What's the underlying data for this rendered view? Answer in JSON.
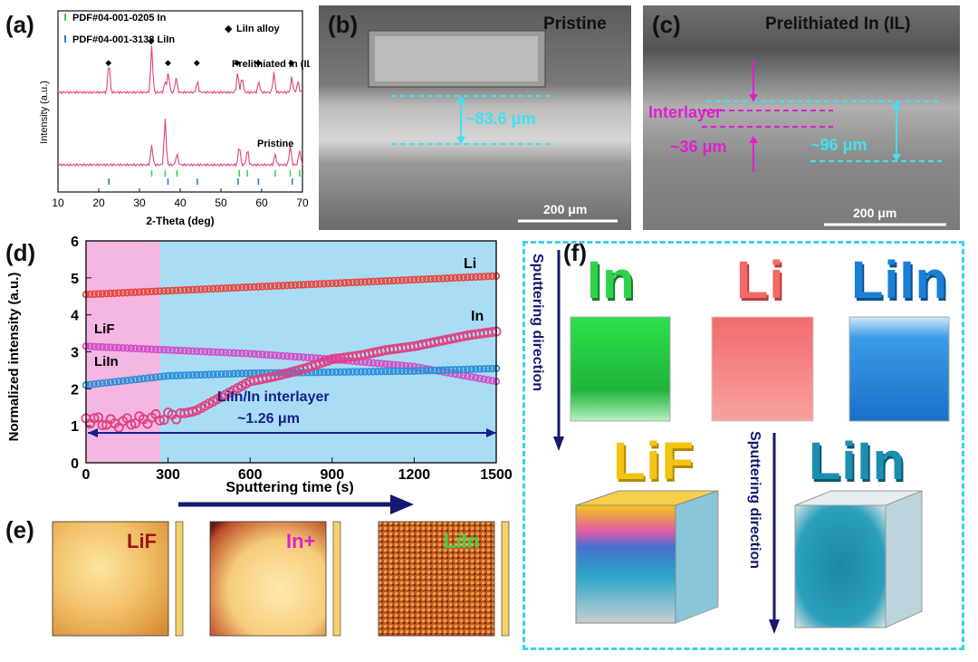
{
  "panel_a": {
    "label": "(a)",
    "legend": {
      "in_pdf": "PDF#04-001-0205 In",
      "liin_pdf": "PDF#04-001-3138 LiIn",
      "alloy": "LiIn alloy"
    },
    "curve_labels": {
      "top": "Prelithiated In (IL)",
      "bottom": "Pristine"
    },
    "chart_data": {
      "type": "line",
      "title": "",
      "xlabel": "2-Theta (deg)",
      "ylabel": "Intensity (a.u.)",
      "xlim": [
        10,
        70
      ],
      "x_ticks": [
        "10",
        "20",
        "30",
        "40",
        "50",
        "60",
        "70"
      ],
      "series": [
        {
          "name": "Prelithiated In (IL)",
          "peaks_2theta": [
            22.5,
            33.0,
            36.3,
            37.1,
            39.0,
            44.2,
            54.1,
            55.2,
            59.3,
            63.0,
            67.4,
            68.9
          ]
        },
        {
          "name": "Pristine",
          "peaks_2theta": [
            33.0,
            36.3,
            39.2,
            54.5,
            56.5,
            63.3,
            67.0,
            69.3
          ]
        }
      ],
      "reference_In_positions": [
        33.0,
        36.3,
        39.2,
        54.5,
        56.5,
        63.3,
        67.0,
        69.3
      ],
      "reference_LiIn_positions": [
        22.5,
        37.0,
        44.2,
        54.2,
        59.2,
        67.5
      ]
    }
  },
  "panel_b": {
    "label": "(b)",
    "title": "Pristine",
    "thickness": "~83.6 μm",
    "scale": "200 μm"
  },
  "panel_c": {
    "label": "(c)",
    "title": "Prelithiated In (IL)",
    "interlayer": "Interlayer",
    "interlayer_thickness": "~36 μm",
    "thickness": "~96 μm",
    "scale": "200 μm"
  },
  "panel_d": {
    "label": "(d)",
    "annotation": "LiIn/In interlayer",
    "annotation_value": "~1.26 μm",
    "series_labels": {
      "Li": "Li",
      "In": "In",
      "LiF": "LiF",
      "LiIn": "LiIn"
    },
    "chart_data": {
      "type": "scatter",
      "xlabel": "Sputtering time (s)",
      "ylabel": "Normalized intensity (a.u.)",
      "xlim": [
        0,
        1500
      ],
      "ylim": [
        0,
        6
      ],
      "x_ticks": [
        0,
        300,
        600,
        900,
        1200,
        1500
      ],
      "y_ticks": [
        0,
        1,
        2,
        3,
        4,
        5,
        6
      ],
      "shaded_regions": [
        {
          "from": 0,
          "to": 270,
          "color": "#f4b6e2"
        },
        {
          "from": 270,
          "to": 1500,
          "color": "#a9dcf5"
        }
      ],
      "series": [
        {
          "name": "Li",
          "color": "#e8483f",
          "x": [
            0,
            300,
            600,
            900,
            1200,
            1500
          ],
          "y": [
            4.55,
            4.65,
            4.75,
            4.85,
            4.95,
            5.05
          ]
        },
        {
          "name": "LiF",
          "color": "#d24fc7",
          "x": [
            0,
            300,
            600,
            900,
            1200,
            1350,
            1500
          ],
          "y": [
            3.15,
            3.05,
            2.95,
            2.8,
            2.6,
            2.4,
            2.2
          ]
        },
        {
          "name": "LiIn",
          "color": "#2d8fd6",
          "x": [
            0,
            300,
            600,
            900,
            1200,
            1500
          ],
          "y": [
            2.1,
            2.35,
            2.42,
            2.45,
            2.48,
            2.55
          ]
        },
        {
          "name": "In",
          "color": "#e0407f",
          "x": [
            0,
            100,
            200,
            300,
            400,
            500,
            600,
            700,
            800,
            900,
            1000,
            1100,
            1200,
            1300,
            1400,
            1500
          ],
          "y": [
            1.2,
            1.05,
            1.15,
            1.25,
            1.4,
            1.8,
            2.2,
            2.35,
            2.55,
            2.8,
            2.9,
            3.05,
            3.15,
            3.3,
            3.45,
            3.55
          ]
        }
      ]
    }
  },
  "panel_e": {
    "label": "(e)",
    "maps": [
      "LiF",
      "In+",
      "LiIn"
    ]
  },
  "panel_f": {
    "label": "(f)",
    "direction_text": "Sputtering direction",
    "top": [
      "In",
      "Li",
      "LiIn"
    ],
    "bottom": [
      "LiF",
      "LiIn"
    ],
    "colors": {
      "In": "#2fd14b",
      "Li": "#f06a6a",
      "LiIn_top": "#1b7fd6",
      "LiF": "#f2c413",
      "LiIn_bottom": "#1b8fb0",
      "border": "#39d3e3",
      "arrow": "#16176e"
    }
  }
}
